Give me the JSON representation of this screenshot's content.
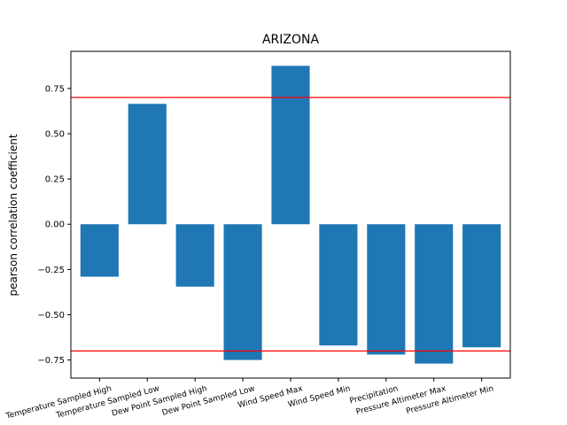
{
  "chart_data": {
    "type": "bar",
    "title": "ARIZONA",
    "xlabel": "",
    "ylabel": "pearson correlation coefficient",
    "categories": [
      "Temperature Sampled High",
      "Temperature Sampled Low",
      "Dew Point Sampled High",
      "Dew Point Sampled Low",
      "Wind Speed Max",
      "Wind Speed Min",
      "Precipitation",
      "Pressure Altimeter Max",
      "Pressure Altimeter Min"
    ],
    "values": [
      -0.29,
      0.665,
      -0.345,
      -0.75,
      0.875,
      -0.67,
      -0.72,
      -0.77,
      -0.68
    ],
    "ylim": [
      -0.85,
      0.955
    ],
    "yticks": [
      -0.75,
      -0.5,
      -0.25,
      0.0,
      0.25,
      0.5,
      0.75
    ],
    "ytick_labels": [
      "−0.75",
      "−0.50",
      "−0.25",
      "0.00",
      "0.25",
      "0.50",
      "0.75"
    ],
    "reference_lines": [
      0.7,
      -0.7
    ],
    "bar_color": "#1f77b4",
    "reference_line_color": "#ff0000",
    "grid": false,
    "legend": "none"
  }
}
